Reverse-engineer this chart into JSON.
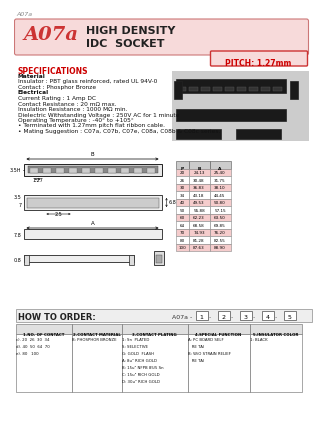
{
  "bg_color": "#ffffff",
  "header_bg": "#f7dada",
  "header_border": "#cc7777",
  "title_text1": "HIGH DENSITY",
  "title_text2": "IDC  SOCKET",
  "part_number": "A07a",
  "pitch_label": "PITCH: 1.27mm",
  "pitch_bg": "#f7dada",
  "pitch_border": "#cc3333",
  "watermark_text": "A07a",
  "spec_title": "SPECIFICATIONS",
  "spec_color": "#cc0000",
  "spec_lines": [
    "Material",
    "Insulator : PBT glass reinforced, rated UL 94V-0",
    "Contact : Phosphor Bronze",
    "Electrical",
    "Current Rating : 1 Amp DC",
    "Contact Resistance : 20 mΩ max.",
    "Insulation Resistance : 1000 MΩ min.",
    "Dielectric Withstanding Voltage : 250V AC for 1 minute",
    "Operating Temperature : -40° to +105°",
    "• Terminated with 1.27mm pitch flat ribbon cable.",
    "• Mating Suggestion : C07a, C07b, C07e, C08a, C08b & C08c series."
  ],
  "bold_lines": [
    "Material",
    "Electrical"
  ],
  "how_to_order_text": "HOW TO ORDER:",
  "order_part": "A07a -",
  "order_boxes": [
    "1",
    "2",
    "3",
    "4",
    "5"
  ],
  "table_headers": [
    "1.NO. OF CONTACT",
    "2.CONTACT MATERIAL",
    "3.CONTACT PLATING",
    "4.SPECIAL FUNCTION",
    "5.INSULATOR COLOR"
  ],
  "table_col1": [
    "c). 20  26  30  34",
    "d). 40  50  64  70",
    "e). 80   100"
  ],
  "table_col2": [
    "B: PHOSPHOR BRONZE"
  ],
  "table_col3": [
    "1: Sn  PLATED",
    "S: SELECTIVE",
    "G: GOLD  FLASH",
    "A: 8u\" RICH GOLD",
    "B: 15u\" NFPB 85/5 Sn",
    "C: 15u\" RICH GOLD",
    "D: 30u\" RICH GOLD"
  ],
  "table_col4": [
    "A: PC BOARD SELF",
    "   RE TAI",
    "B: W/O STRAIN RELIEF",
    "   RE TAI"
  ],
  "table_col5": [
    "1: BLACK"
  ],
  "dim_table_headers": [
    "P",
    "B",
    "A"
  ],
  "dim_table_rows": [
    [
      "20",
      "24.13",
      "25.40"
    ],
    [
      "26",
      "30.48",
      "31.75"
    ],
    [
      "30",
      "36.83",
      "38.10"
    ],
    [
      "34",
      "43.18",
      "44.45"
    ],
    [
      "40",
      "49.53",
      "50.80"
    ],
    [
      "50",
      "55.88",
      "57.15"
    ],
    [
      "60",
      "62.23",
      "63.50"
    ],
    [
      "64",
      "68.58",
      "69.85"
    ],
    [
      "70",
      "74.93",
      "76.20"
    ],
    [
      "80",
      "81.28",
      "82.55"
    ],
    [
      "100",
      "87.63",
      "88.90"
    ]
  ],
  "dim_row_colors": [
    "#f5cccc",
    "#ffffff",
    "#f5cccc",
    "#ffffff",
    "#f5cccc",
    "#ffffff",
    "#f5cccc",
    "#ffffff",
    "#f5cccc",
    "#ffffff",
    "#f5cccc"
  ]
}
